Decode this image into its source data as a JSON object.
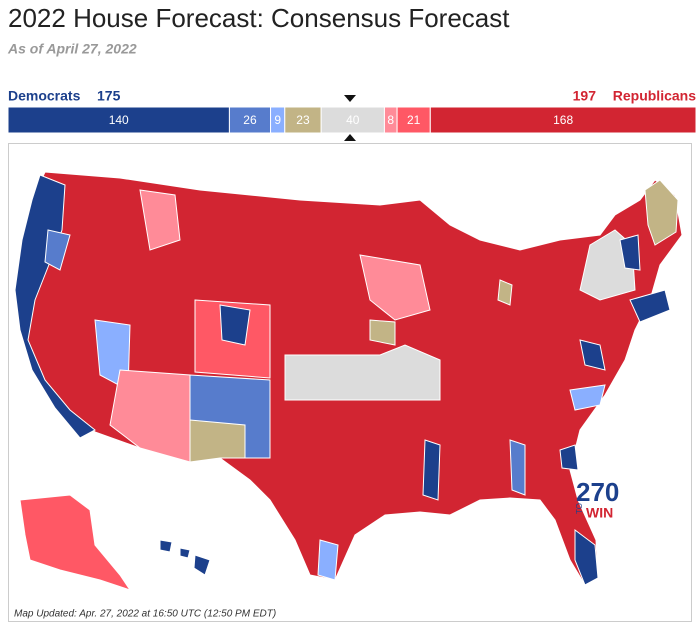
{
  "header": {
    "title": "2022 House Forecast: Consensus Forecast",
    "subtitle": "As of April 27, 2022"
  },
  "totals": {
    "democrats": {
      "label": "Democrats",
      "value": 175,
      "color": "#1c408c"
    },
    "republicans": {
      "label": "Republicans",
      "value": 197,
      "color": "#d22532"
    }
  },
  "bar": {
    "segments": [
      {
        "value": 140,
        "color": "#1c408c"
      },
      {
        "value": 26,
        "color": "#577ccc"
      },
      {
        "value": 9,
        "color": "#8aafff"
      },
      {
        "value": 23,
        "color": "#c2b486"
      },
      {
        "value": 40,
        "color": "#dcdcdc"
      },
      {
        "value": 8,
        "color": "#ff8b98"
      },
      {
        "value": 21,
        "color": "#ff5865"
      },
      {
        "value": 168,
        "color": "#d22532"
      }
    ]
  },
  "map": {
    "updated": "Map Updated: Apr. 27, 2022 at 16:50 UTC (12:50 PM EDT)",
    "logo": {
      "number": "270",
      "to": "TO",
      "win": "WIN"
    }
  }
}
